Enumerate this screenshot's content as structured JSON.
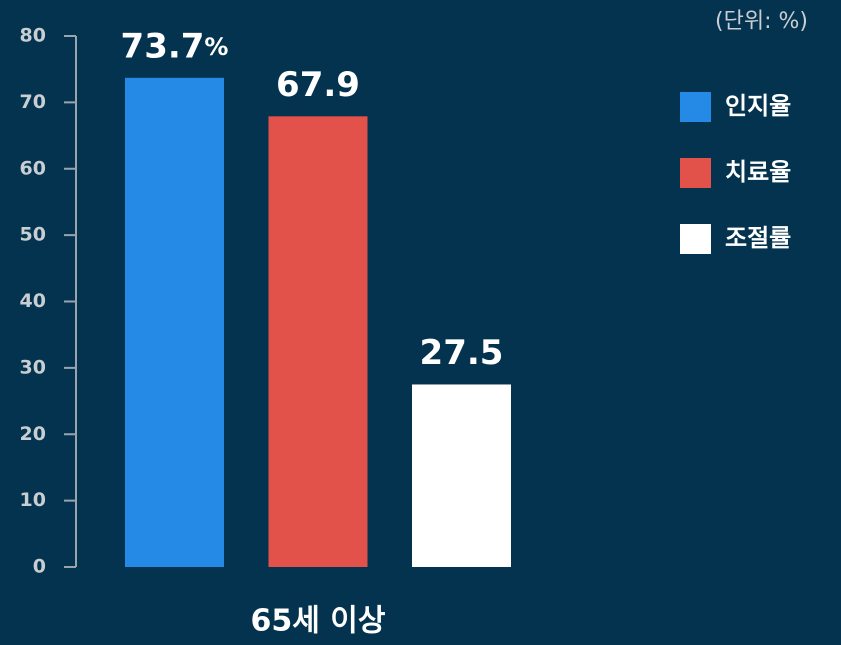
{
  "chart_data": {
    "type": "bar",
    "unit_label": "(단위: %)",
    "categories": [
      "65세 이상"
    ],
    "series": [
      {
        "name": "인지율",
        "color": "#2589e6",
        "values": [
          73.7
        ],
        "value_labels": [
          "73.7%"
        ]
      },
      {
        "name": "치료율",
        "color": "#e2514a",
        "values": [
          67.9
        ]
      },
      {
        "name": "조절률",
        "color": "#ffffff",
        "values": [
          27.5
        ]
      }
    ],
    "ylim": [
      0,
      80
    ],
    "yticks": [
      0,
      10,
      20,
      30,
      40,
      50,
      60,
      70,
      80
    ],
    "grid": false,
    "legend": "right"
  }
}
